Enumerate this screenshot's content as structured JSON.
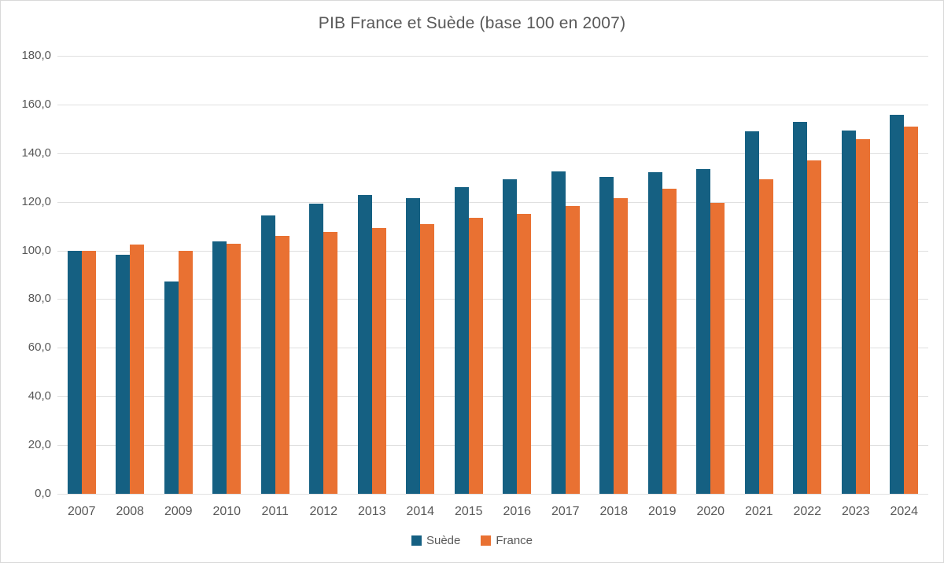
{
  "title": "PIB France et Suède (base 100 en 2007)",
  "chart_data": {
    "type": "bar",
    "title": "PIB France et Suède (base 100 en 2007)",
    "categories": [
      "2007",
      "2008",
      "2009",
      "2010",
      "2011",
      "2012",
      "2013",
      "2014",
      "2015",
      "2016",
      "2017",
      "2018",
      "2019",
      "2020",
      "2021",
      "2022",
      "2023",
      "2024"
    ],
    "series": [
      {
        "name": "Suède",
        "color": "#156082",
        "values": [
          100.0,
          98.3,
          87.3,
          103.9,
          114.5,
          119.2,
          122.8,
          121.6,
          126.1,
          129.4,
          132.4,
          130.2,
          132.3,
          133.4,
          149.0,
          152.8,
          149.3,
          155.9
        ]
      },
      {
        "name": "France",
        "color": "#E97132",
        "values": [
          100.0,
          102.6,
          99.9,
          102.8,
          106.1,
          107.5,
          109.2,
          110.9,
          113.5,
          115.0,
          118.2,
          121.5,
          125.5,
          119.6,
          129.3,
          136.9,
          145.7,
          150.8
        ]
      }
    ],
    "xlabel": "",
    "ylabel": "",
    "ylim": [
      0,
      180
    ],
    "ytick_step": 20,
    "ytick_labels": [
      "0,0",
      "20,0",
      "40,0",
      "60,0",
      "80,0",
      "100,0",
      "120,0",
      "140,0",
      "160,0",
      "180,0"
    ],
    "grid": true,
    "legend_position": "bottom",
    "colors": {
      "gridline": "#e0e0e0",
      "axis_text": "#595959",
      "title_text": "#595959",
      "background": "#ffffff",
      "border": "#d9d9d9"
    }
  }
}
